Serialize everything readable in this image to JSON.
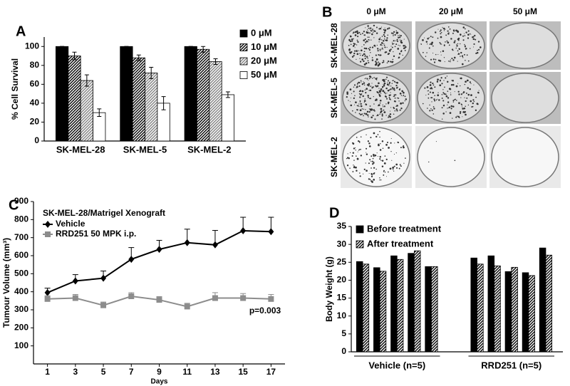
{
  "chart_data": [
    {
      "type": "bar",
      "panel": "A",
      "ylabel": "% Cell Survival",
      "categories": [
        "SK-MEL-28",
        "SK-MEL-5",
        "SK-MEL-2"
      ],
      "series": [
        {
          "name": "0 μM",
          "color": "#000000",
          "hatch": false,
          "values": [
            100,
            100,
            100
          ],
          "errors": [
            0,
            0,
            0
          ]
        },
        {
          "name": "10 μM",
          "color": "#000000",
          "hatch": true,
          "values": [
            90,
            88,
            97
          ],
          "errors": [
            4,
            3,
            3
          ]
        },
        {
          "name": "20 μM",
          "color": "#808080",
          "hatch": true,
          "values": [
            64,
            72,
            84
          ],
          "errors": [
            6,
            6,
            3
          ]
        },
        {
          "name": "50 μM",
          "color": "#ffffff",
          "hatch": false,
          "values": [
            30,
            40,
            49
          ],
          "errors": [
            4,
            7,
            3
          ]
        }
      ],
      "ylim": [
        0,
        110
      ],
      "yticks": [
        0,
        20,
        40,
        60,
        80,
        100
      ]
    },
    {
      "type": "line",
      "panel": "C",
      "title": "SK-MEL-28/Matrigel Xenograft",
      "xlabel": "Days",
      "ylabel": "Tumour  Volume (mm³)",
      "x": [
        1,
        3,
        5,
        7,
        9,
        11,
        13,
        15,
        17
      ],
      "series": [
        {
          "name": "Vehicle",
          "color": "#000000",
          "marker": "diamond",
          "values": [
            395,
            460,
            475,
            580,
            635,
            672,
            660,
            738,
            733
          ],
          "errors": [
            25,
            35,
            40,
            65,
            50,
            75,
            80,
            75,
            80
          ]
        },
        {
          "name": "RRD251 50 MPK i.p.",
          "color": "#8c8c8c",
          "marker": "square",
          "values": [
            360,
            365,
            325,
            375,
            355,
            318,
            365,
            365,
            360
          ],
          "errors": [
            18,
            20,
            18,
            20,
            18,
            18,
            30,
            25,
            25
          ]
        }
      ],
      "xlim": [
        0,
        18
      ],
      "xticks": [
        1,
        3,
        5,
        7,
        9,
        11,
        13,
        15,
        17
      ],
      "ylim": [
        0,
        900
      ],
      "yticks": [
        100,
        200,
        300,
        400,
        500,
        600,
        700,
        800,
        900
      ],
      "annotation": "p=0.003"
    },
    {
      "type": "bar",
      "panel": "D",
      "ylabel": "Body Weight (g)",
      "categories": [
        null,
        null,
        null,
        null,
        null,
        null,
        null,
        null,
        null,
        null
      ],
      "groups": [
        "Vehicle (n=5)",
        "RRD251 (n=5)"
      ],
      "series": [
        {
          "name": "Before treatment",
          "color": "#000000",
          "hatch": false,
          "values": [
            25.2,
            23.5,
            26.8,
            27.5,
            23.8,
            26.2,
            26.8,
            22.4,
            22.1,
            29.0
          ]
        },
        {
          "name": "After treatment",
          "color": "#000000",
          "hatch": true,
          "values": [
            24.5,
            22.5,
            25.8,
            28.2,
            23.8,
            24.5,
            24.0,
            23.6,
            21.3,
            27.0
          ]
        }
      ],
      "ylim": [
        0,
        35
      ],
      "yticks": [
        0,
        5,
        10,
        15,
        20,
        25,
        30,
        35
      ]
    }
  ],
  "panel_b": {
    "label": "B",
    "columns": [
      "0 μM",
      "20 μM",
      "50 μM"
    ],
    "rows": [
      "SK-MEL-28",
      "SK-MEL-5",
      "SK-MEL-2"
    ]
  }
}
